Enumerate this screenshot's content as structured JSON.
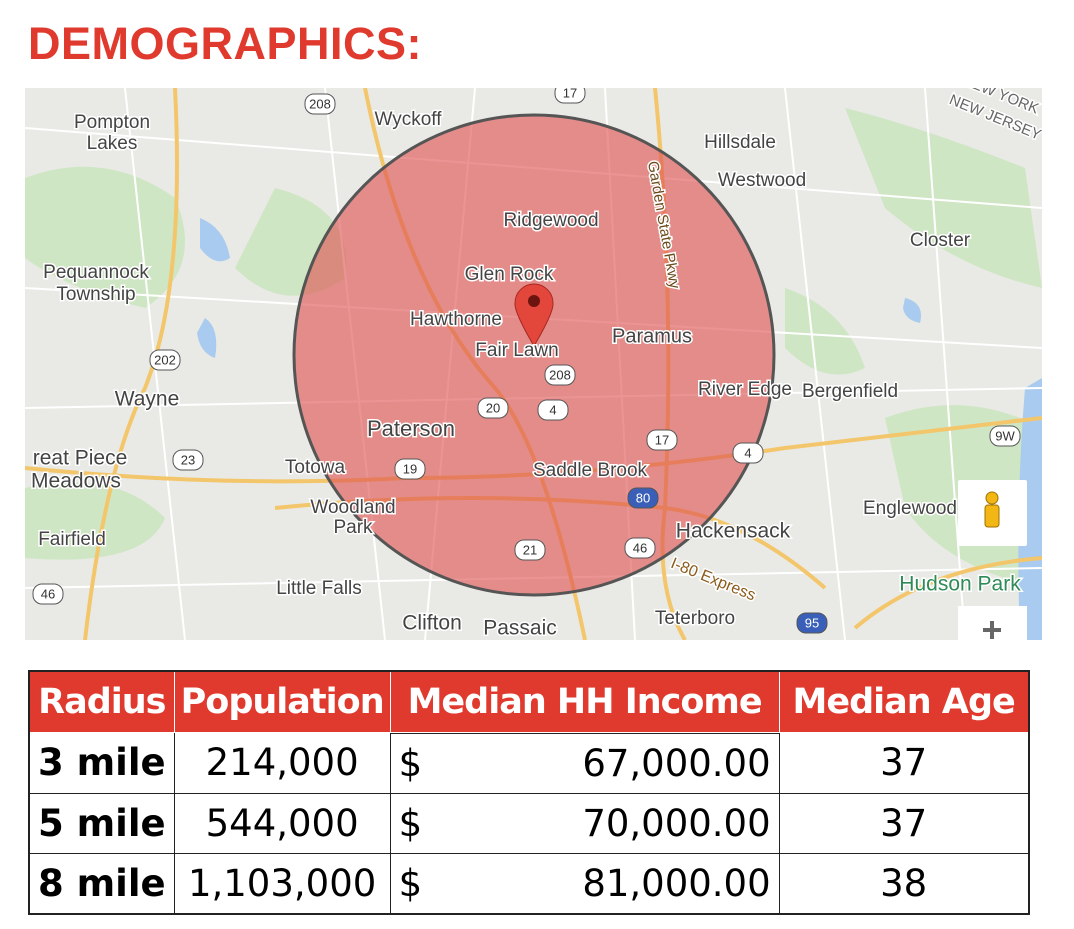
{
  "header": {
    "title": "DEMOGRAPHICS:"
  },
  "map": {
    "labels": [
      "Pompton",
      "Lakes",
      "Wyckoff",
      "Hillsdale",
      "Westwood",
      "Ridgewood",
      "Closter",
      "Pequannock",
      "Township",
      "Glen Rock",
      "Hawthorne",
      "Paramus",
      "Fair Lawn",
      "Wayne",
      "River Edge",
      "Bergenfield",
      "Paterson",
      "reat Piece",
      "Meadows",
      "Totowa",
      "Saddle Brook",
      "Woodland",
      "Park",
      "Englewood",
      "Hackensack",
      "Fairfield",
      "Little Falls",
      "Hudson Park",
      "I-80 Express",
      "Teterboro",
      "Clifton",
      "Passaic",
      "Garden State Pkwy",
      "NEW YORK",
      "NEW JERSEY"
    ],
    "shields": [
      "208",
      "17",
      "202",
      "208",
      "20",
      "4",
      "17",
      "4",
      "19",
      "23",
      "21",
      "46",
      "46",
      "9W",
      "80",
      "95"
    ]
  },
  "table": {
    "columns": [
      "Radius",
      "Population",
      "Median HH Income",
      "Median Age"
    ],
    "rows": [
      [
        "3 mile",
        "214,000",
        "$",
        "67,000.00",
        "37"
      ],
      [
        "5 mile",
        "544,000",
        "$",
        "70,000.00",
        "37"
      ],
      [
        "8 mile",
        "1,103,000",
        "$",
        "81,000.00",
        "38"
      ]
    ]
  }
}
